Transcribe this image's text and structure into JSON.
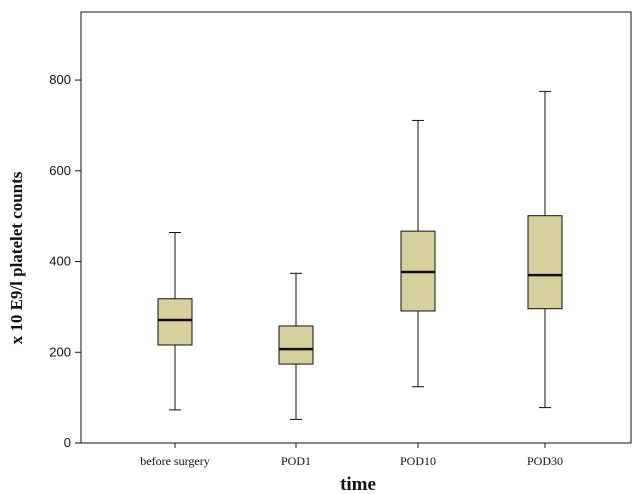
{
  "chart_data": {
    "type": "box",
    "xlabel": "time",
    "ylabel": "x 10 E9/l platelet counts",
    "ylim": [
      0,
      950
    ],
    "yticks": [
      0,
      200,
      400,
      600,
      800
    ],
    "grid": false,
    "box_color": "#d6cf9e",
    "line_color": "#111111",
    "categories": [
      "before surgery",
      "POD1",
      "POD10",
      "POD30"
    ],
    "boxes": [
      {
        "category": "before surgery",
        "min": 73,
        "q1": 216,
        "median": 271,
        "q3": 318,
        "max": 464
      },
      {
        "category": "POD1",
        "min": 52,
        "q1": 174,
        "median": 207,
        "q3": 258,
        "max": 374
      },
      {
        "category": "POD10",
        "min": 124,
        "q1": 291,
        "median": 377,
        "q3": 467,
        "max": 711
      },
      {
        "category": "POD30",
        "min": 78,
        "q1": 296,
        "median": 370,
        "q3": 501,
        "max": 775
      }
    ]
  }
}
